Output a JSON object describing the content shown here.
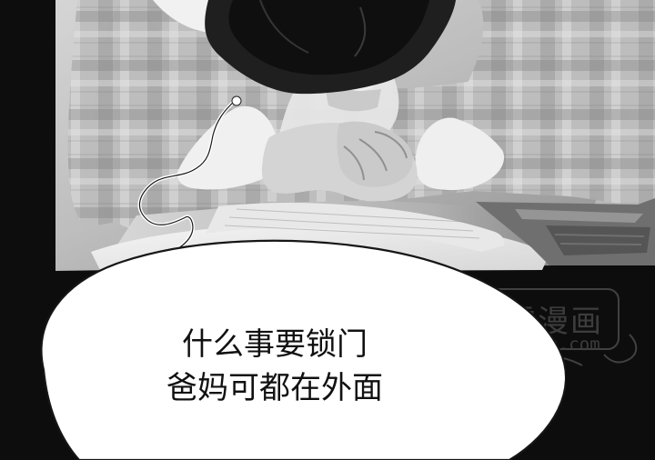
{
  "scene": {
    "subject": "comic-panel"
  },
  "dialogue": {
    "lines": [
      "什么事要锁门",
      "爸妈可都在外面"
    ]
  },
  "watermark": {
    "title": "飞雪漫画",
    "url": "feixuemh.com"
  },
  "colors": {
    "background": "#0d0d0d",
    "bubble": "#ffffff",
    "text": "#111111",
    "watermark": "#7d7d7d"
  }
}
